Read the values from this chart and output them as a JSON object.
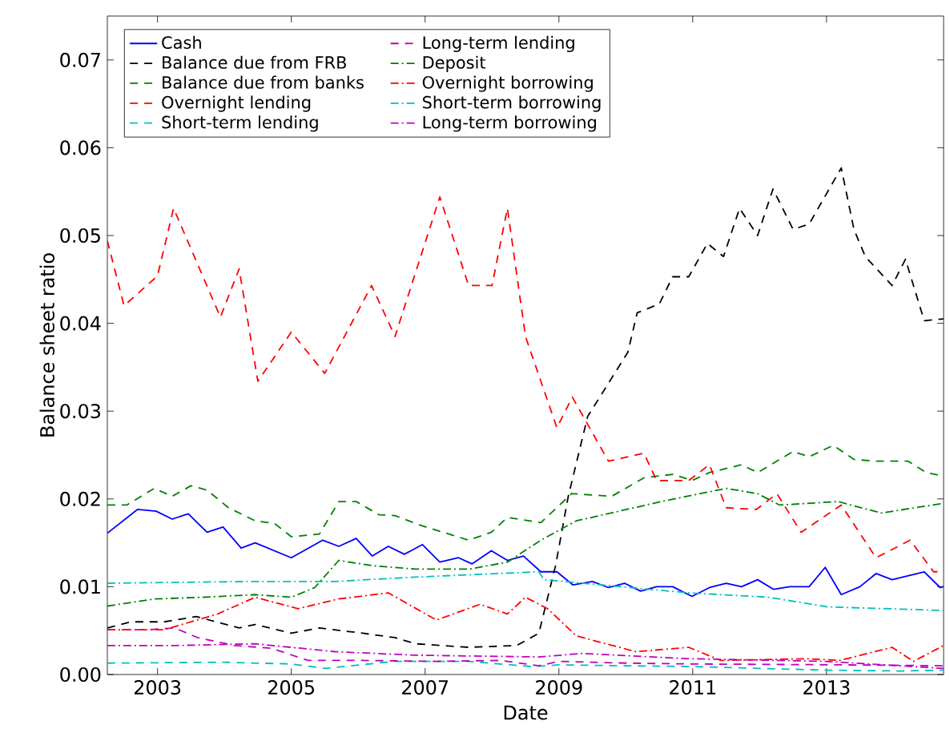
{
  "chart_data": {
    "type": "line",
    "xlabel": "Date",
    "ylabel": "Balance sheet ratio",
    "xlim": [
      2002.25,
      2014.75
    ],
    "xticks": [
      2003,
      2005,
      2007,
      2009,
      2011,
      2013
    ],
    "ylim": [
      0,
      0.075
    ],
    "yticks": [
      {
        "value": 0,
        "label": "0.00"
      },
      {
        "value": 0.01,
        "label": "0.01"
      },
      {
        "value": 0.02,
        "label": "0.02"
      },
      {
        "value": 0.03,
        "label": "0.03"
      },
      {
        "value": 0.04,
        "label": "0.04"
      },
      {
        "value": 0.05,
        "label": "0.05"
      },
      {
        "value": 0.06,
        "label": "0.06"
      },
      {
        "value": 0.07,
        "label": "0.07"
      }
    ],
    "legend": "top left",
    "grid": false,
    "marker": "none",
    "series": [
      {
        "name": "Cash",
        "color": "#0000ff",
        "line_style": "solid",
        "x": [
          2002.25,
          2002.7,
          2002.98,
          2003.22,
          2003.46,
          2003.74,
          2003.98,
          2004.25,
          2004.46,
          2005.0,
          2005.47,
          2005.71,
          2005.97,
          2006.21,
          2006.45,
          2006.69,
          2006.96,
          2007.22,
          2007.5,
          2007.7,
          2007.99,
          2008.23,
          2008.47,
          2008.73,
          2008.97,
          2009.21,
          2009.5,
          2009.74,
          2009.98,
          2010.22,
          2010.46,
          2010.7,
          2010.99,
          2011.25,
          2011.5,
          2011.73,
          2011.97,
          2012.21,
          2012.45,
          2012.74,
          2012.98,
          2013.22,
          2013.5,
          2013.74,
          2013.98,
          2014.46,
          2014.7,
          2014.75
        ],
        "values": [
          0.0161,
          0.0188,
          0.0186,
          0.0177,
          0.0183,
          0.0162,
          0.0168,
          0.0144,
          0.015,
          0.0133,
          0.0153,
          0.0146,
          0.0155,
          0.0135,
          0.0146,
          0.0137,
          0.0148,
          0.0128,
          0.0133,
          0.0126,
          0.0141,
          0.013,
          0.0135,
          0.0117,
          0.0117,
          0.0102,
          0.0106,
          0.0099,
          0.0104,
          0.0095,
          0.01,
          0.01,
          0.0089,
          0.0099,
          0.0104,
          0.01,
          0.0108,
          0.0097,
          0.01,
          0.01,
          0.0122,
          0.0091,
          0.01,
          0.0115,
          0.0108,
          0.0117,
          0.0099,
          0.01
        ]
      },
      {
        "name": "Balance due from FRB",
        "color": "#000000",
        "line_style": "dashed",
        "x": [
          2002.25,
          2002.6,
          2003.1,
          2003.58,
          2004.22,
          2004.46,
          2005.0,
          2005.42,
          2006.07,
          2006.55,
          2006.86,
          2007.65,
          2008.37,
          2008.7,
          2008.95,
          2009.14,
          2009.43,
          2010.03,
          2010.17,
          2010.5,
          2010.7,
          2010.94,
          2011.22,
          2011.46,
          2011.7,
          2011.97,
          2012.2,
          2012.5,
          2012.74,
          2013.22,
          2013.41,
          2013.58,
          2013.98,
          2014.18,
          2014.46,
          2014.75
        ],
        "values": [
          0.0053,
          0.006,
          0.006,
          0.0066,
          0.0053,
          0.0057,
          0.0047,
          0.0053,
          0.0047,
          0.0042,
          0.0035,
          0.0031,
          0.0033,
          0.0047,
          0.0124,
          0.0203,
          0.0294,
          0.0367,
          0.0412,
          0.0422,
          0.0453,
          0.0453,
          0.0491,
          0.0476,
          0.0531,
          0.05,
          0.0553,
          0.0507,
          0.0513,
          0.0577,
          0.0507,
          0.0476,
          0.0443,
          0.0473,
          0.0403,
          0.0405
        ]
      },
      {
        "name": "Balance due from banks",
        "color": "#008000",
        "line_style": "dashed",
        "x": [
          2002.25,
          2002.54,
          2002.95,
          2003.22,
          2003.5,
          2003.74,
          2004.06,
          2004.46,
          2004.75,
          2005.0,
          2005.42,
          2005.71,
          2005.97,
          2006.31,
          2006.55,
          2006.93,
          2007.65,
          2007.99,
          2008.23,
          2008.73,
          2009.19,
          2009.79,
          2010.27,
          2010.7,
          2010.99,
          2011.25,
          2011.73,
          2011.97,
          2012.5,
          2012.74,
          2013.1,
          2013.41,
          2013.74,
          2014.22,
          2014.49,
          2014.75
        ],
        "values": [
          0.0193,
          0.0193,
          0.0212,
          0.0203,
          0.0215,
          0.021,
          0.019,
          0.0175,
          0.0172,
          0.0157,
          0.016,
          0.0197,
          0.0197,
          0.0182,
          0.0181,
          0.017,
          0.0153,
          0.0162,
          0.0179,
          0.0173,
          0.0206,
          0.0203,
          0.0224,
          0.0228,
          0.0221,
          0.023,
          0.0239,
          0.023,
          0.0254,
          0.0248,
          0.0261,
          0.0245,
          0.0243,
          0.0243,
          0.023,
          0.0226
        ]
      },
      {
        "name": "Overnight lending",
        "color": "#ff0000",
        "line_style": "dashed",
        "x": [
          2002.25,
          2002.5,
          2003.0,
          2003.24,
          2003.94,
          2004.22,
          2004.5,
          2005.0,
          2005.5,
          2006.2,
          2006.55,
          2007.22,
          2007.65,
          2008.0,
          2008.23,
          2008.5,
          2008.97,
          2009.2,
          2009.74,
          2010.27,
          2010.46,
          2010.94,
          2011.25,
          2011.5,
          2011.95,
          2012.26,
          2012.62,
          2013.22,
          2013.74,
          2014.25,
          2014.6,
          2014.75
        ],
        "values": [
          0.0494,
          0.042,
          0.0454,
          0.0531,
          0.0407,
          0.0462,
          0.0334,
          0.039,
          0.0343,
          0.0443,
          0.0385,
          0.0544,
          0.0443,
          0.0443,
          0.0531,
          0.0385,
          0.0281,
          0.0316,
          0.0243,
          0.0252,
          0.0221,
          0.0221,
          0.0239,
          0.019,
          0.0188,
          0.0206,
          0.0162,
          0.0193,
          0.0133,
          0.0153,
          0.0117,
          0.0117
        ]
      },
      {
        "name": "Short-term lending",
        "color": "#00bfbf",
        "line_style": "dashed",
        "x": [
          2002.25,
          2004.0,
          2005.0,
          2005.5,
          2006.55,
          2007.65,
          2008.6,
          2009.0,
          2011.0,
          2013.0,
          2014.1,
          2014.75
        ],
        "values": [
          0.0013,
          0.0014,
          0.0012,
          0.0007,
          0.0015,
          0.0015,
          0.0009,
          0.0011,
          0.0009,
          0.0005,
          0.0004,
          0.0005
        ]
      },
      {
        "name": "Long-term lending",
        "color": "#bf00bf",
        "line_style": "dashed",
        "x": [
          2002.25,
          2002.85,
          2003.26,
          2003.6,
          2004.15,
          2004.7,
          2005.25,
          2006.07,
          2007.17,
          2008.13,
          2008.7,
          2009.0,
          2010.0,
          2011.0,
          2013.26,
          2014.75
        ],
        "values": [
          0.0051,
          0.0051,
          0.0053,
          0.0042,
          0.0033,
          0.003,
          0.0016,
          0.0016,
          0.0015,
          0.0016,
          0.001,
          0.0015,
          0.0013,
          0.0012,
          0.0011,
          0.001
        ]
      },
      {
        "name": "Deposit",
        "color": "#008000",
        "line_style": "dashdot",
        "x": [
          2002.25,
          2002.95,
          2003.67,
          2004.46,
          2005.0,
          2005.35,
          2005.71,
          2006.21,
          2006.86,
          2007.65,
          2008.23,
          2008.73,
          2009.26,
          2010.53,
          2011.5,
          2011.97,
          2012.3,
          2013.17,
          2013.82,
          2014.75
        ],
        "values": [
          0.0078,
          0.0086,
          0.0088,
          0.0091,
          0.0088,
          0.0099,
          0.013,
          0.0124,
          0.012,
          0.012,
          0.0128,
          0.0153,
          0.0175,
          0.0197,
          0.0212,
          0.0206,
          0.0193,
          0.0197,
          0.0184,
          0.0195
        ]
      },
      {
        "name": "Overnight borrowing",
        "color": "#ff0000",
        "line_style": "dashdot",
        "x": [
          2002.25,
          2003.1,
          2003.9,
          2004.46,
          2005.1,
          2005.7,
          2006.45,
          2007.17,
          2007.82,
          2008.23,
          2008.5,
          2008.83,
          2009.26,
          2010.15,
          2010.94,
          2011.42,
          2012.7,
          2013.2,
          2013.98,
          2014.3,
          2014.75
        ],
        "values": [
          0.0051,
          0.0051,
          0.0069,
          0.0088,
          0.0075,
          0.0086,
          0.0093,
          0.0062,
          0.008,
          0.0069,
          0.0088,
          0.0075,
          0.0044,
          0.0026,
          0.0031,
          0.0016,
          0.0018,
          0.0016,
          0.0031,
          0.0015,
          0.0033
        ]
      },
      {
        "name": "Short-term borrowing",
        "color": "#00bfbf",
        "line_style": "dashdot",
        "x": [
          2002.25,
          2004.46,
          2005.66,
          2006.86,
          2008.7,
          2008.78,
          2010.94,
          2012.14,
          2013.02,
          2014.75
        ],
        "values": [
          0.0104,
          0.0106,
          0.0106,
          0.0111,
          0.0117,
          0.0108,
          0.0093,
          0.0088,
          0.0077,
          0.0073
        ]
      },
      {
        "name": "Long-term borrowing",
        "color": "#bf00bf",
        "line_style": "dashdot",
        "x": [
          2002.25,
          2003.26,
          2004.46,
          2005.66,
          2006.86,
          2008.7,
          2009.35,
          2010.94,
          2012.98,
          2014.75
        ],
        "values": [
          0.0033,
          0.0033,
          0.0035,
          0.0026,
          0.0022,
          0.002,
          0.0024,
          0.0018,
          0.0015,
          0.0007
        ]
      }
    ]
  }
}
